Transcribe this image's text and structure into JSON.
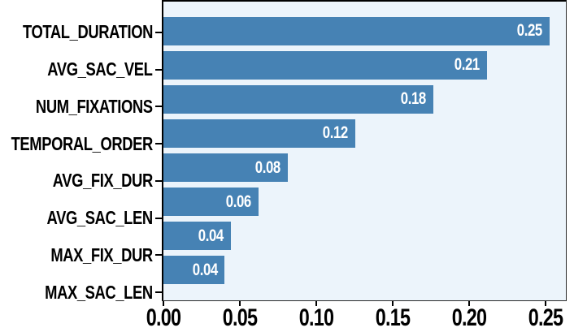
{
  "chart_data": {
    "type": "bar",
    "orientation": "horizontal",
    "title": "",
    "xlabel": "",
    "ylabel": "",
    "categories": [
      "TOTAL_DURATION",
      "AVG_SAC_VEL",
      "NUM_FIXATIONS",
      "TEMPORAL_ORDER",
      "AVG_FIX_DUR",
      "AVG_SAC_LEN",
      "MAX_FIX_DUR",
      "MAX_SAC_LEN"
    ],
    "values": [
      0.252,
      0.211,
      0.176,
      0.125,
      0.081,
      0.062,
      0.044,
      0.04
    ],
    "value_labels": [
      "0.25",
      "0.21",
      "0.18",
      "0.12",
      "0.08",
      "0.06",
      "0.04",
      "0.04"
    ],
    "x_ticks": [
      0.0,
      0.05,
      0.1,
      0.15,
      0.2,
      0.25
    ],
    "x_tick_labels": [
      "0.00",
      "0.05",
      "0.10",
      "0.15",
      "0.20",
      "0.25"
    ],
    "xlim": [
      0,
      0.2625
    ],
    "grid": false,
    "legend": null,
    "colors": {
      "bar": "#4682B4",
      "plot_background": "#ECF4FB",
      "figure_background": "#FFFFFF",
      "bar_label_text": "#FFFFFF",
      "axis_text": "#000000",
      "frame": "#000000"
    }
  }
}
